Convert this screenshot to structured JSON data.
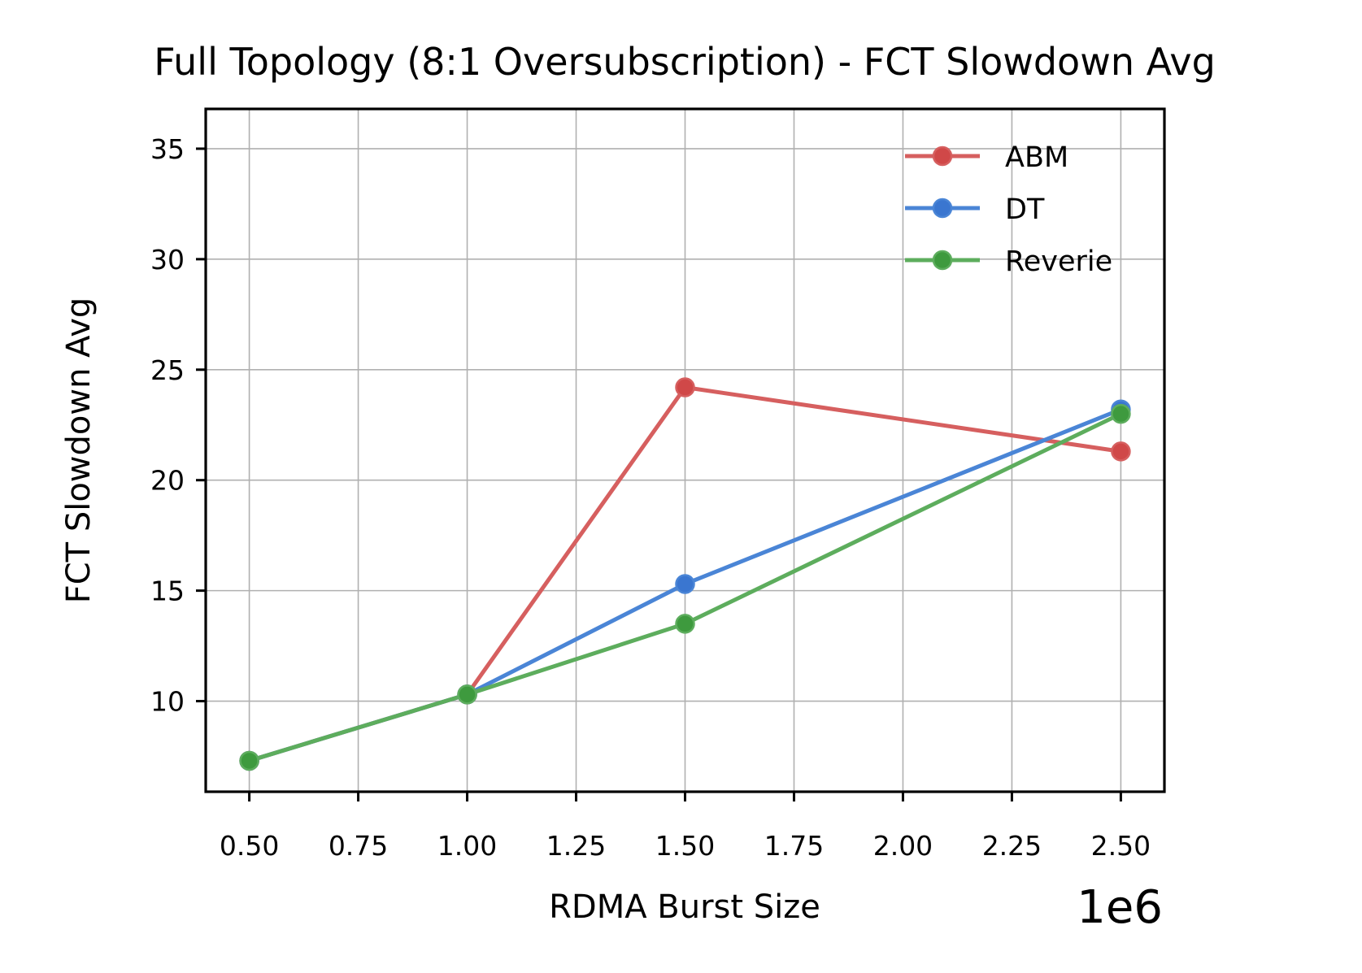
{
  "chart_data": {
    "type": "line",
    "title": "Full Topology (8:1 Oversubscription) - FCT Slowdown Avg",
    "xlabel": "RDMA Burst Size",
    "ylabel": "FCT Slowdown Avg",
    "x_offset_label": "1e6",
    "xlim": [
      0.4,
      2.6
    ],
    "ylim": [
      5.9,
      36.8
    ],
    "x_ticks": [
      0.5,
      0.75,
      1.0,
      1.25,
      1.5,
      1.75,
      2.0,
      2.25,
      2.5
    ],
    "x_tick_labels": [
      "0.50",
      "0.75",
      "1.00",
      "1.25",
      "1.50",
      "1.75",
      "2.00",
      "2.25",
      "2.50"
    ],
    "y_ticks": [
      10,
      15,
      20,
      25,
      30,
      35
    ],
    "y_tick_labels": [
      "10",
      "15",
      "20",
      "25",
      "30",
      "35"
    ],
    "grid": true,
    "legend_position": "top-right",
    "x": [
      0.5,
      1.0,
      1.5,
      2.5
    ],
    "series": [
      {
        "name": "ABM",
        "color": "#d65f5f",
        "marker_color": "#d04848",
        "values": [
          7.3,
          10.3,
          24.2,
          21.3
        ]
      },
      {
        "name": "DT",
        "color": "#4a85d6",
        "marker_color": "#3a76d0",
        "values": [
          7.3,
          10.3,
          15.3,
          23.2
        ]
      },
      {
        "name": "Reverie",
        "color": "#5dad5d",
        "marker_color": "#3e9a3e",
        "values": [
          7.3,
          10.3,
          13.5,
          23.0
        ]
      }
    ]
  }
}
